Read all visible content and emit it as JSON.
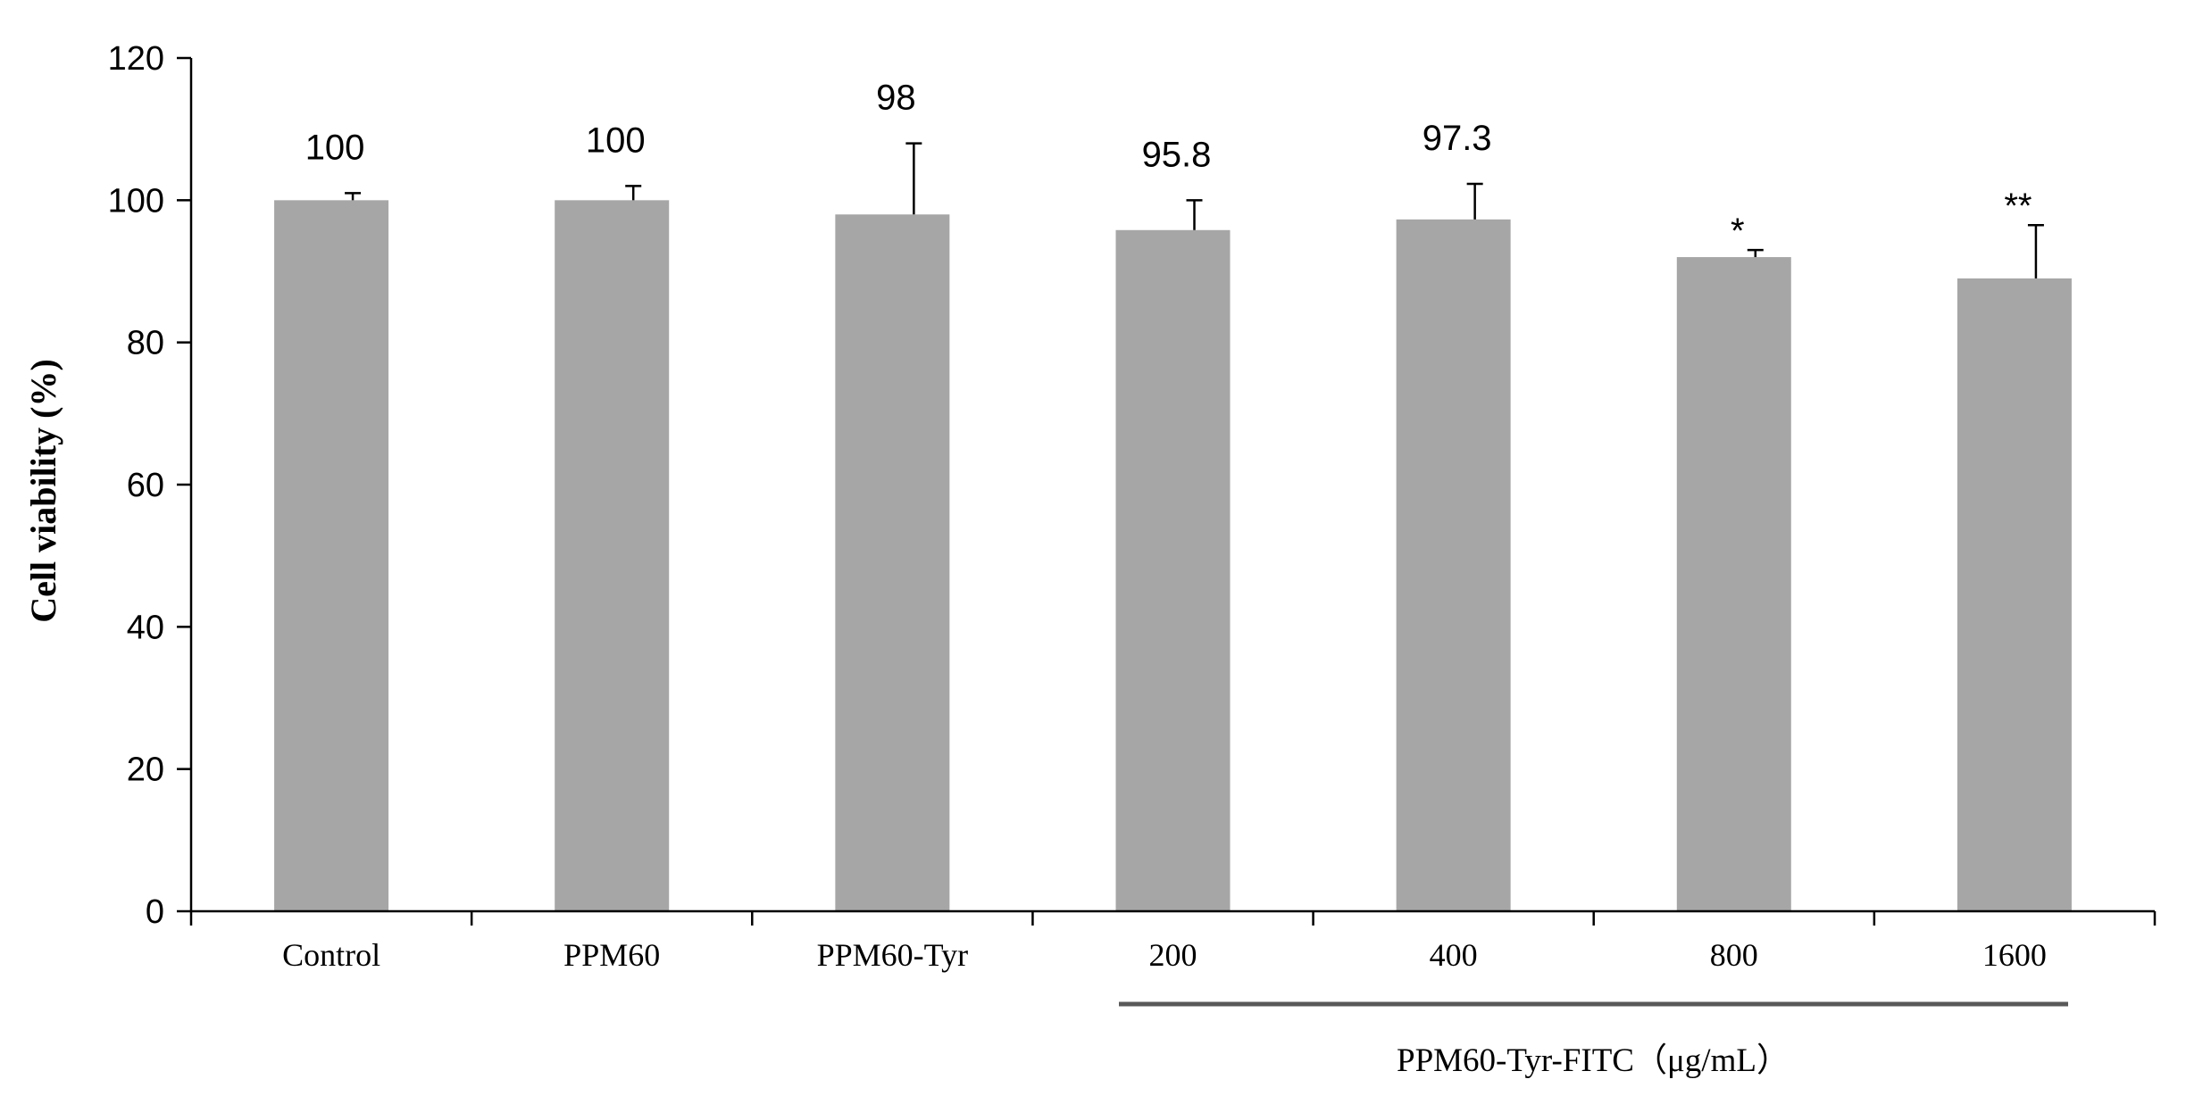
{
  "chart_data": {
    "type": "bar",
    "title": "",
    "ylabel": "Cell viability (%)",
    "xlabel": "",
    "ylim": [
      0,
      120
    ],
    "yticks": [
      0,
      20,
      40,
      60,
      80,
      100,
      120
    ],
    "categories": [
      "Control",
      "PPM60",
      "PPM60-Tyr",
      "200",
      "400",
      "800",
      "1600"
    ],
    "values": [
      100,
      100,
      98,
      95.8,
      97.3,
      92,
      89
    ],
    "errors": [
      1,
      2,
      10,
      4.2,
      5,
      1,
      7.5
    ],
    "data_labels": [
      "100",
      "100",
      "98",
      "95.8",
      "97.3",
      "*",
      "**"
    ],
    "group_label": "PPM60-Tyr-FITC（μg/mL）",
    "group_categories": [
      "200",
      "400",
      "800",
      "1600"
    ],
    "bar_color": "#a6a6a6",
    "grid": false,
    "legend": "none"
  }
}
